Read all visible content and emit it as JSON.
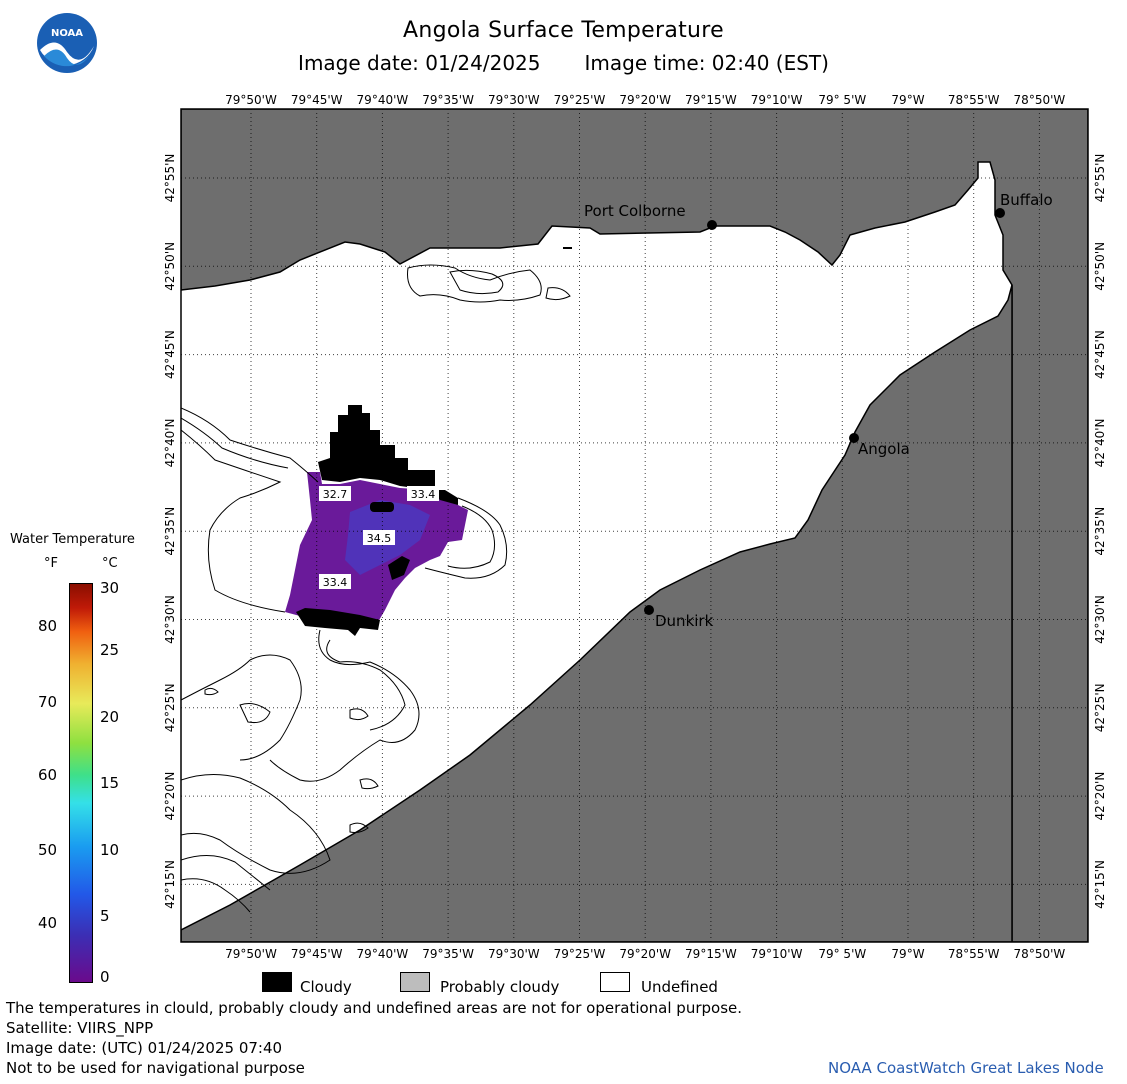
{
  "header": {
    "title": "Angola Surface Temperature",
    "image_date": "Image date: 01/24/2025",
    "image_time": "Image time: 02:40 (EST)"
  },
  "logo": {
    "text": "NOAA",
    "icon": "noaa-logo-icon"
  },
  "map": {
    "lon_ticks": [
      "79°50'W",
      "79°45'W",
      "79°40'W",
      "79°35'W",
      "79°30'W",
      "79°25'W",
      "79°20'W",
      "79°15'W",
      "79°10'W",
      "79° 5'W",
      "79°W",
      "78°55'W",
      "78°50'W"
    ],
    "lat_ticks": [
      "42°55'N",
      "42°50'N",
      "42°45'N",
      "42°40'N",
      "42°35'N",
      "42°30'N",
      "42°25'N",
      "42°20'N",
      "42°15'N"
    ],
    "cities": [
      {
        "name": "Port Colborne"
      },
      {
        "name": "Buffalo"
      },
      {
        "name": "Angola"
      },
      {
        "name": "Dunkirk"
      }
    ],
    "temperature_labels": [
      "32.7",
      "33.4",
      "34.5",
      "33.4"
    ],
    "colors": {
      "land": "#6e6e6e",
      "water": "#ffffff",
      "cloud": "#000000"
    }
  },
  "legend": {
    "title": "Water Temperature",
    "unit_f": "°F",
    "unit_c": "°C",
    "f_labels": [
      "80",
      "70",
      "60",
      "50",
      "40"
    ],
    "c_labels": [
      "30",
      "25",
      "20",
      "15",
      "10",
      "5",
      "0"
    ]
  },
  "key": {
    "cloudy": "Cloudy",
    "probably_cloudy": "Probably cloudy",
    "undefined": "Undefined"
  },
  "footer": {
    "line1": "The temperatures in clould, probably cloudy and undefined areas are not for operational purpose.",
    "line2": "Satellite: VIIRS_NPP",
    "line3": "Image date: (UTC) 01/24/2025  07:40",
    "line4": "Not to be used for navigational purpose",
    "credit": "NOAA CoastWatch Great Lakes Node"
  }
}
